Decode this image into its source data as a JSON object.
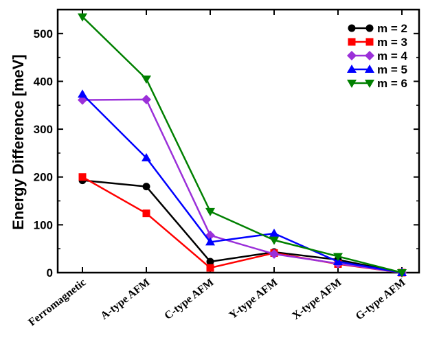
{
  "chart_data": {
    "type": "line",
    "title": "",
    "xlabel": "",
    "ylabel": "Energy Difference [meV]",
    "categories": [
      "Ferromagnetic",
      "A-type AFM",
      "C-type AFM",
      "Y-type AFM",
      "X-type AFM",
      "G-type AFM"
    ],
    "ylim": [
      0,
      550
    ],
    "yticks": [
      "0",
      "100",
      "200",
      "300",
      "400",
      "500"
    ],
    "legend_position": "top-right",
    "grid": false,
    "series": [
      {
        "name": "m = 2",
        "color": "#000000",
        "marker": "circle",
        "values": [
          193,
          180,
          23,
          43,
          27,
          0
        ]
      },
      {
        "name": "m = 3",
        "color": "#ff0000",
        "marker": "square",
        "values": [
          200,
          124,
          10,
          41,
          18,
          0
        ]
      },
      {
        "name": "m = 4",
        "color": "#9b30d9",
        "marker": "diamond",
        "values": [
          361,
          362,
          78,
          39,
          19,
          0
        ]
      },
      {
        "name": "m = 5",
        "color": "#0000ff",
        "marker": "triangle-up",
        "values": [
          373,
          240,
          64,
          82,
          23,
          0
        ]
      },
      {
        "name": "m = 6",
        "color": "#008000",
        "marker": "triangle-down",
        "values": [
          535,
          405,
          128,
          68,
          34,
          0
        ]
      }
    ]
  }
}
